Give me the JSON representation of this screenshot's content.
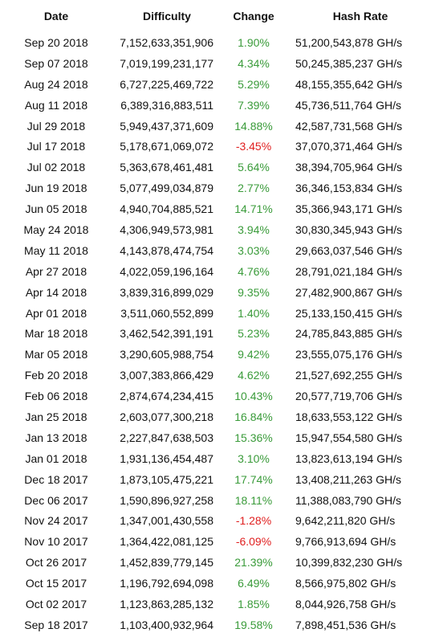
{
  "headers": {
    "date": "Date",
    "difficulty": "Difficulty",
    "change": "Change",
    "hash_rate": "Hash Rate"
  },
  "colors": {
    "positive": "#3a9b3a",
    "negative": "#e02020"
  },
  "rows": [
    {
      "date": "Sep 20 2018",
      "difficulty": "7,152,633,351,906",
      "change": "1.90%",
      "hash_rate": "51,200,543,878 GH/s"
    },
    {
      "date": "Sep 07 2018",
      "difficulty": "7,019,199,231,177",
      "change": "4.34%",
      "hash_rate": "50,245,385,237 GH/s"
    },
    {
      "date": "Aug 24 2018",
      "difficulty": "6,727,225,469,722",
      "change": "5.29%",
      "hash_rate": "48,155,355,642 GH/s"
    },
    {
      "date": "Aug 11 2018",
      "difficulty": "6,389,316,883,511",
      "change": "7.39%",
      "hash_rate": "45,736,511,764 GH/s"
    },
    {
      "date": "Jul 29 2018",
      "difficulty": "5,949,437,371,609",
      "change": "14.88%",
      "hash_rate": "42,587,731,568 GH/s"
    },
    {
      "date": "Jul 17 2018",
      "difficulty": "5,178,671,069,072",
      "change": "-3.45%",
      "hash_rate": "37,070,371,464 GH/s"
    },
    {
      "date": "Jul 02 2018",
      "difficulty": "5,363,678,461,481",
      "change": "5.64%",
      "hash_rate": "38,394,705,964 GH/s"
    },
    {
      "date": "Jun 19 2018",
      "difficulty": "5,077,499,034,879",
      "change": "2.77%",
      "hash_rate": "36,346,153,834 GH/s"
    },
    {
      "date": "Jun 05 2018",
      "difficulty": "4,940,704,885,521",
      "change": "14.71%",
      "hash_rate": "35,366,943,171 GH/s"
    },
    {
      "date": "May 24 2018",
      "difficulty": "4,306,949,573,981",
      "change": "3.94%",
      "hash_rate": "30,830,345,943 GH/s"
    },
    {
      "date": "May 11 2018",
      "difficulty": "4,143,878,474,754",
      "change": "3.03%",
      "hash_rate": "29,663,037,546 GH/s"
    },
    {
      "date": "Apr 27 2018",
      "difficulty": "4,022,059,196,164",
      "change": "4.76%",
      "hash_rate": "28,791,021,184 GH/s"
    },
    {
      "date": "Apr 14 2018",
      "difficulty": "3,839,316,899,029",
      "change": "9.35%",
      "hash_rate": "27,482,900,867 GH/s"
    },
    {
      "date": "Apr 01 2018",
      "difficulty": "3,511,060,552,899",
      "change": "1.40%",
      "hash_rate": "25,133,150,415 GH/s"
    },
    {
      "date": "Mar 18 2018",
      "difficulty": "3,462,542,391,191",
      "change": "5.23%",
      "hash_rate": "24,785,843,885 GH/s"
    },
    {
      "date": "Mar 05 2018",
      "difficulty": "3,290,605,988,754",
      "change": "9.42%",
      "hash_rate": "23,555,075,176 GH/s"
    },
    {
      "date": "Feb 20 2018",
      "difficulty": "3,007,383,866,429",
      "change": "4.62%",
      "hash_rate": "21,527,692,255 GH/s"
    },
    {
      "date": "Feb 06 2018",
      "difficulty": "2,874,674,234,415",
      "change": "10.43%",
      "hash_rate": "20,577,719,706 GH/s"
    },
    {
      "date": "Jan 25 2018",
      "difficulty": "2,603,077,300,218",
      "change": "16.84%",
      "hash_rate": "18,633,553,122 GH/s"
    },
    {
      "date": "Jan 13 2018",
      "difficulty": "2,227,847,638,503",
      "change": "15.36%",
      "hash_rate": "15,947,554,580 GH/s"
    },
    {
      "date": "Jan 01 2018",
      "difficulty": "1,931,136,454,487",
      "change": "3.10%",
      "hash_rate": "13,823,613,194 GH/s"
    },
    {
      "date": "Dec 18 2017",
      "difficulty": "1,873,105,475,221",
      "change": "17.74%",
      "hash_rate": "13,408,211,263 GH/s"
    },
    {
      "date": "Dec 06 2017",
      "difficulty": "1,590,896,927,258",
      "change": "18.11%",
      "hash_rate": "11,388,083,790 GH/s"
    },
    {
      "date": "Nov 24 2017",
      "difficulty": "1,347,001,430,558",
      "change": "-1.28%",
      "hash_rate": "9,642,211,820 GH/s"
    },
    {
      "date": "Nov 10 2017",
      "difficulty": "1,364,422,081,125",
      "change": "-6.09%",
      "hash_rate": "9,766,913,694 GH/s"
    },
    {
      "date": "Oct 26 2017",
      "difficulty": "1,452,839,779,145",
      "change": "21.39%",
      "hash_rate": "10,399,832,230 GH/s"
    },
    {
      "date": "Oct 15 2017",
      "difficulty": "1,196,792,694,098",
      "change": "6.49%",
      "hash_rate": "8,566,975,802 GH/s"
    },
    {
      "date": "Oct 02 2017",
      "difficulty": "1,123,863,285,132",
      "change": "1.85%",
      "hash_rate": "8,044,926,758 GH/s"
    },
    {
      "date": "Sep 18 2017",
      "difficulty": "1,103,400,932,964",
      "change": "19.58%",
      "hash_rate": "7,898,451,536 GH/s"
    }
  ]
}
